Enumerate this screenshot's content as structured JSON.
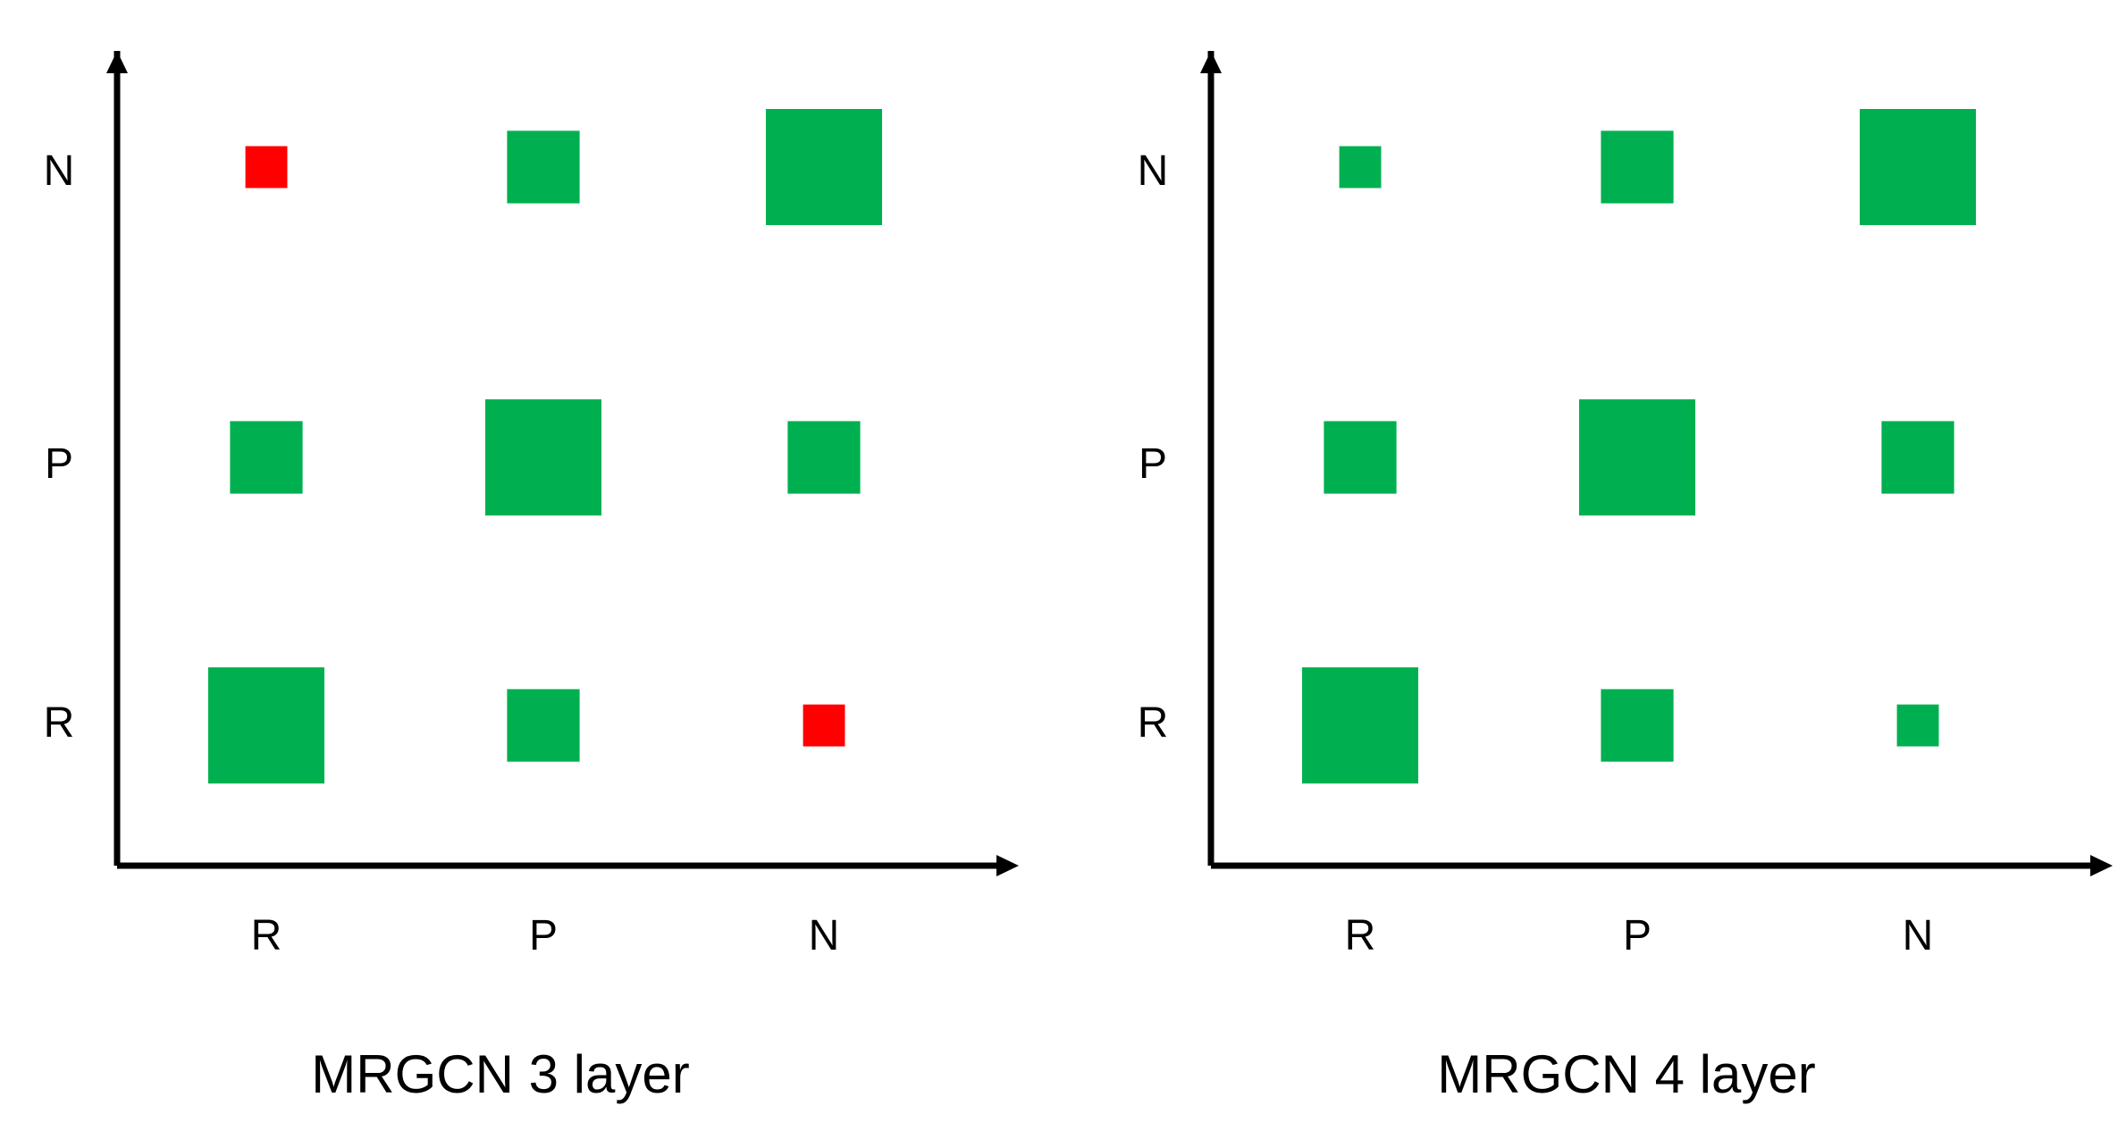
{
  "colors": {
    "axis": "#000000",
    "positive": "#00b050",
    "negative": "#ff0000"
  },
  "chart_data": [
    {
      "type": "heatmap",
      "title": "MRGCN 3 layer",
      "x_categories": [
        "R",
        "P",
        "N"
      ],
      "y_categories": [
        "R",
        "P",
        "N"
      ],
      "xlabel": "",
      "ylabel": "",
      "grid": false,
      "legend": "none",
      "encoding": "square area = magnitude; green = positive, red = negative",
      "cells": [
        {
          "x": "R",
          "y": "R",
          "value": 1.0,
          "sign": "positive"
        },
        {
          "x": "P",
          "y": "R",
          "value": 0.39,
          "sign": "positive"
        },
        {
          "x": "N",
          "y": "R",
          "value": 0.13,
          "sign": "negative"
        },
        {
          "x": "R",
          "y": "P",
          "value": 0.39,
          "sign": "positive"
        },
        {
          "x": "P",
          "y": "P",
          "value": 1.0,
          "sign": "positive"
        },
        {
          "x": "N",
          "y": "P",
          "value": 0.39,
          "sign": "positive"
        },
        {
          "x": "R",
          "y": "N",
          "value": 0.13,
          "sign": "negative"
        },
        {
          "x": "P",
          "y": "N",
          "value": 0.39,
          "sign": "positive"
        },
        {
          "x": "N",
          "y": "N",
          "value": 1.0,
          "sign": "positive"
        }
      ]
    },
    {
      "type": "heatmap",
      "title": "MRGCN 4  layer",
      "x_categories": [
        "R",
        "P",
        "N"
      ],
      "y_categories": [
        "R",
        "P",
        "N"
      ],
      "xlabel": "",
      "ylabel": "",
      "grid": false,
      "legend": "none",
      "encoding": "square area = magnitude; green = positive, red = negative",
      "cells": [
        {
          "x": "R",
          "y": "R",
          "value": 1.0,
          "sign": "positive"
        },
        {
          "x": "P",
          "y": "R",
          "value": 0.39,
          "sign": "positive"
        },
        {
          "x": "N",
          "y": "R",
          "value": 0.13,
          "sign": "positive"
        },
        {
          "x": "R",
          "y": "P",
          "value": 0.39,
          "sign": "positive"
        },
        {
          "x": "P",
          "y": "P",
          "value": 1.0,
          "sign": "positive"
        },
        {
          "x": "N",
          "y": "P",
          "value": 0.39,
          "sign": "positive"
        },
        {
          "x": "R",
          "y": "N",
          "value": 0.13,
          "sign": "positive"
        },
        {
          "x": "P",
          "y": "N",
          "value": 0.39,
          "sign": "positive"
        },
        {
          "x": "N",
          "y": "N",
          "value": 1.0,
          "sign": "positive"
        }
      ]
    }
  ]
}
